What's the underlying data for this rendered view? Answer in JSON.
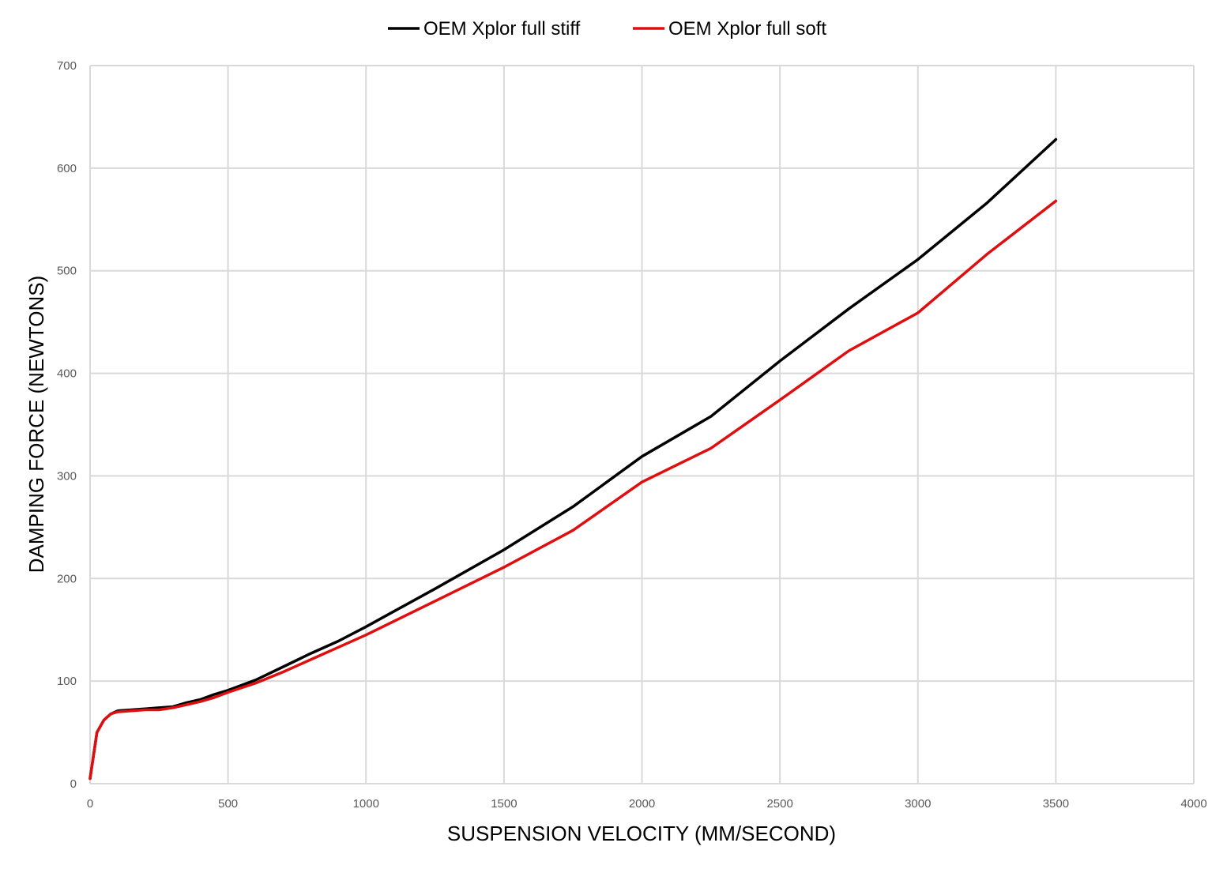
{
  "chart_data": {
    "type": "line",
    "title": "",
    "xlabel": "SUSPENSION VELOCITY (MM/SECOND)",
    "ylabel": "DAMPING FORCE (NEWTONS)",
    "xlim": [
      0,
      4000
    ],
    "ylim": [
      0,
      700
    ],
    "x_ticks": [
      0,
      500,
      1000,
      1500,
      2000,
      2500,
      3000,
      3500,
      4000
    ],
    "y_ticks": [
      0,
      100,
      200,
      300,
      400,
      500,
      600,
      700
    ],
    "grid": true,
    "legend": "top-center",
    "series": [
      {
        "name": "OEM Xplor full stiff",
        "color": "#000000",
        "x": [
          0,
          25,
          50,
          75,
          100,
          150,
          200,
          250,
          300,
          350,
          400,
          450,
          500,
          600,
          700,
          800,
          900,
          1000,
          1250,
          1500,
          1750,
          2000,
          2250,
          2500,
          2750,
          3000,
          3250,
          3500
        ],
        "y": [
          5,
          50,
          62,
          68,
          71,
          72,
          73,
          74,
          75,
          79,
          82,
          87,
          91,
          101,
          114,
          127,
          139,
          153,
          190,
          228,
          270,
          319,
          358,
          412,
          463,
          511,
          566,
          628
        ]
      },
      {
        "name": "OEM Xplor full soft",
        "color": "#e00f0f",
        "x": [
          0,
          25,
          50,
          75,
          100,
          150,
          200,
          250,
          300,
          350,
          400,
          450,
          500,
          600,
          700,
          800,
          900,
          1000,
          1250,
          1500,
          1750,
          2000,
          2250,
          2500,
          2750,
          3000,
          3250,
          3500
        ],
        "y": [
          5,
          50,
          62,
          68,
          70,
          71,
          72,
          72,
          74,
          77,
          80,
          84,
          89,
          98,
          109,
          121,
          133,
          145,
          178,
          211,
          247,
          294,
          327,
          374,
          422,
          459,
          516,
          568
        ]
      }
    ]
  }
}
